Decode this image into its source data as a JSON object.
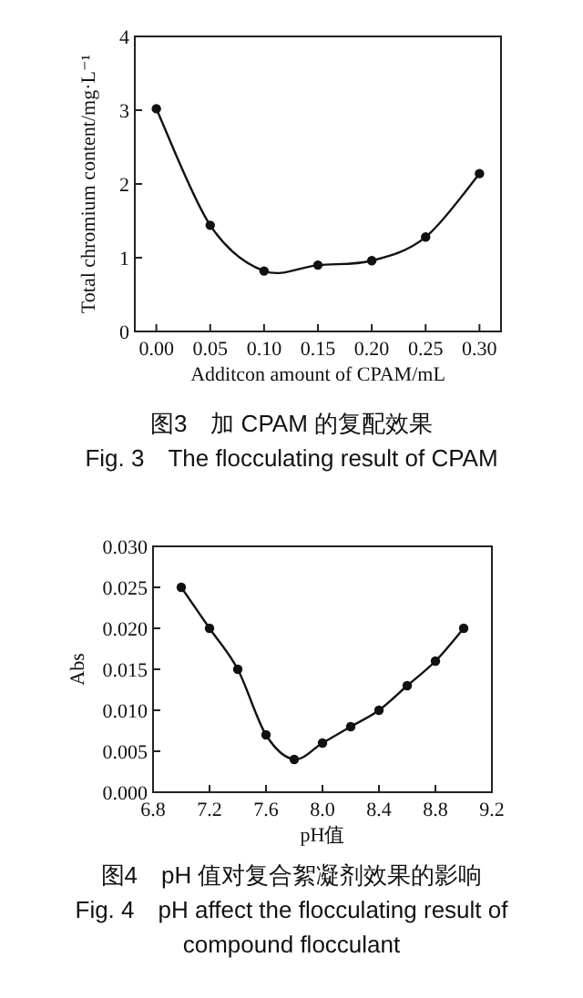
{
  "chart_data": [
    {
      "type": "line",
      "xlabel": "Additcon amount of CPAM/mL",
      "ylabel": "Total chromium content/mg·L⁻¹",
      "x": [
        0,
        0.05,
        0.1,
        0.15,
        0.2,
        0.25,
        0.3
      ],
      "series": [
        {
          "color": "#111111",
          "values": [
            3.02,
            1.44,
            0.82,
            0.9,
            0.96,
            1.28,
            2.14
          ]
        }
      ],
      "xlim": [
        -0.02,
        0.32
      ],
      "ylim": [
        0,
        4
      ],
      "xticks": [
        {
          "value": 0,
          "label": "0.00"
        },
        {
          "value": 0.05,
          "label": "0.05"
        },
        {
          "value": 0.1,
          "label": "0.10"
        },
        {
          "value": 0.15,
          "label": "0.15"
        },
        {
          "value": 0.2,
          "label": "0.20"
        },
        {
          "value": 0.25,
          "label": "0.25"
        },
        {
          "value": 0.3,
          "label": "0.30"
        }
      ],
      "yticks": [
        0,
        1,
        2,
        3,
        4
      ],
      "marker": "circle",
      "line_style": "solid",
      "grid": false,
      "annotations": [
        "图3　加 CPAM 的复配效果",
        "Fig. 3　The flocculating result of CPAM"
      ]
    },
    {
      "type": "line",
      "xlabel": "pH值",
      "ylabel": "Abs",
      "x": [
        7.0,
        7.2,
        7.4,
        7.6,
        7.8,
        8.0,
        8.2,
        8.4,
        8.6,
        8.8,
        9.0
      ],
      "series": [
        {
          "color": "#111111",
          "values": [
            0.025,
            0.02,
            0.015,
            0.007,
            0.004,
            0.006,
            0.008,
            0.01,
            0.013,
            0.016,
            0.02
          ]
        }
      ],
      "xlim": [
        6.8,
        9.2
      ],
      "ylim": [
        0,
        0.03
      ],
      "xticks": [
        6.8,
        7.2,
        7.6,
        {
          "value": 8,
          "label": "8.0"
        },
        8.4,
        8.8,
        9.2
      ],
      "yticks": [
        {
          "value": 0,
          "label": "0.000"
        },
        {
          "value": 0.005,
          "label": "0.005"
        },
        {
          "value": 0.01,
          "label": "0.010"
        },
        {
          "value": 0.015,
          "label": "0.015"
        },
        {
          "value": 0.02,
          "label": "0.020"
        },
        {
          "value": 0.025,
          "label": "0.025"
        },
        {
          "value": 0.03,
          "label": "0.030"
        }
      ],
      "marker": "circle",
      "line_style": "solid",
      "grid": false,
      "annotations": [
        "图4　pH 值对复合絮凝剂效果的影响",
        "Fig. 4　pH affect the flocculating result of compound flocculant"
      ]
    }
  ]
}
